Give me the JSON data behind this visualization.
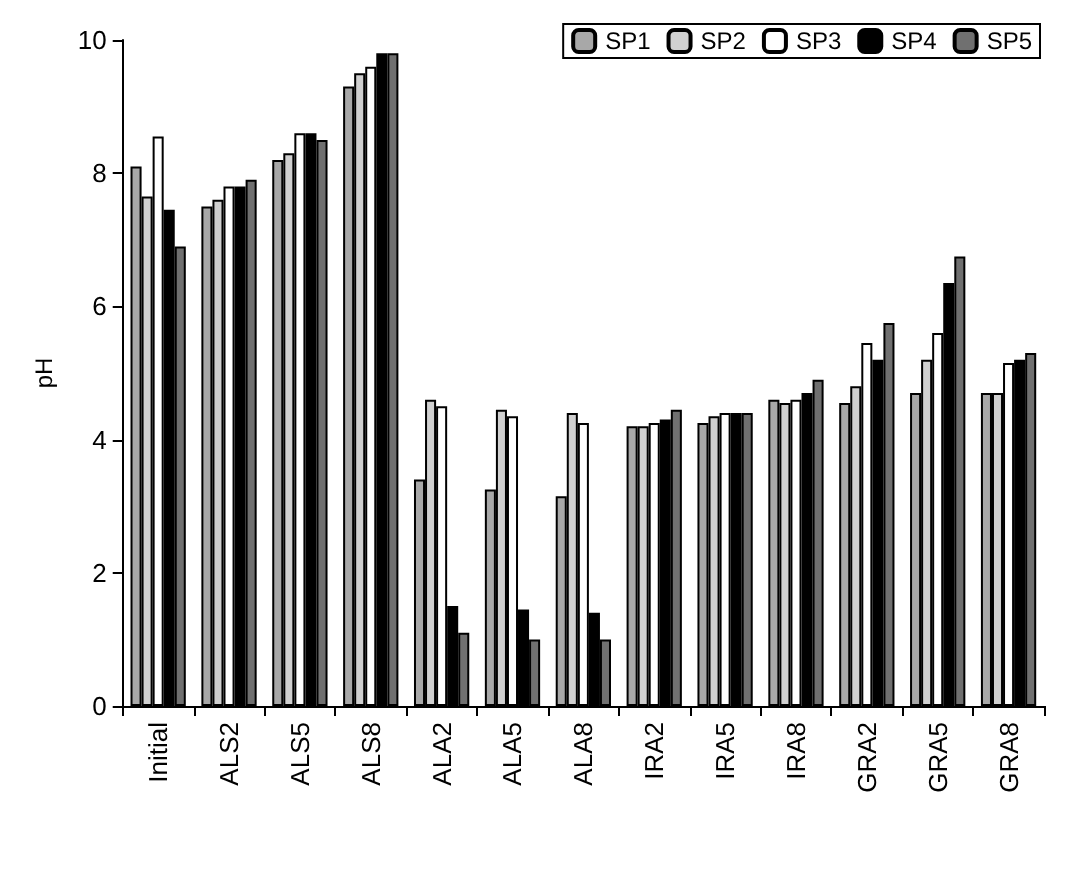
{
  "chart_data": {
    "type": "bar",
    "ylabel": "pH",
    "categories": [
      "Initial",
      "ALS2",
      "ALS5",
      "ALS8",
      "ALA2",
      "ALA5",
      "ALA8",
      "IRA2",
      "IRA5",
      "IRA8",
      "GRA2",
      "GRA5",
      "GRA8"
    ],
    "series": [
      {
        "name": "SP1",
        "color": "#a8a8a8",
        "values": [
          8.1,
          7.5,
          8.2,
          9.3,
          3.4,
          3.25,
          3.15,
          4.2,
          4.25,
          4.6,
          4.55,
          4.7,
          4.7
        ]
      },
      {
        "name": "SP2",
        "color": "#d0d0d0",
        "values": [
          7.65,
          7.6,
          8.3,
          9.5,
          4.6,
          4.45,
          4.4,
          4.2,
          4.35,
          4.55,
          4.8,
          5.2,
          4.7
        ]
      },
      {
        "name": "SP3",
        "color": "#ffffff",
        "values": [
          8.55,
          7.8,
          8.6,
          9.6,
          4.5,
          4.35,
          4.25,
          4.25,
          4.4,
          4.6,
          5.45,
          5.6,
          5.15
        ]
      },
      {
        "name": "SP4",
        "color": "#000000",
        "values": [
          7.45,
          7.8,
          8.6,
          9.8,
          1.5,
          1.45,
          1.4,
          4.3,
          4.4,
          4.7,
          5.2,
          6.35,
          5.2
        ]
      },
      {
        "name": "SP5",
        "color": "#707070",
        "values": [
          6.9,
          7.9,
          8.5,
          9.8,
          1.1,
          1.0,
          1.0,
          4.45,
          4.4,
          4.9,
          5.75,
          6.75,
          5.3
        ]
      }
    ],
    "ylim": [
      0,
      10
    ],
    "yticks": [
      0,
      2,
      4,
      6,
      8,
      10
    ],
    "grid": false,
    "legend": "top right"
  }
}
